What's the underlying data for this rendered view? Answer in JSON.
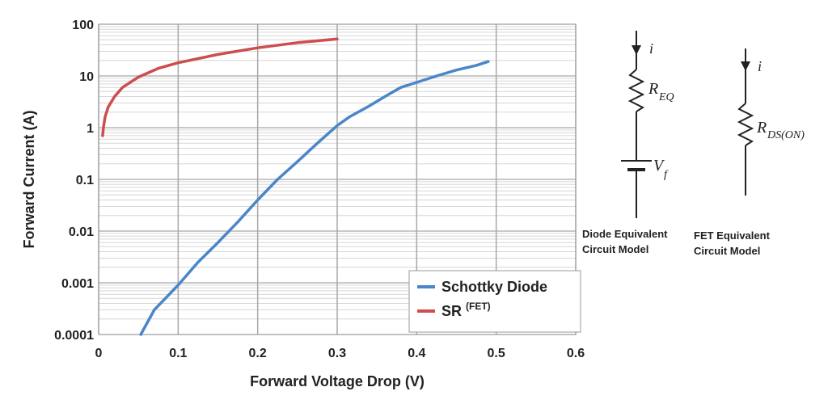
{
  "chart_data": {
    "type": "line",
    "xlabel": "Forward Voltage Drop (V)",
    "ylabel": "Forward Current (A)",
    "xlim": [
      0,
      0.6
    ],
    "ylim": [
      0.0001,
      100
    ],
    "yscale": "log",
    "grid": true,
    "legend_position": "bottom-right",
    "x_ticks": [
      "0",
      "0.1",
      "0.2",
      "0.3",
      "0.4",
      "0.5",
      "0.6"
    ],
    "y_ticks": [
      "0.0001",
      "0.001",
      "0.01",
      "0.1",
      "1",
      "10",
      "100"
    ],
    "series": [
      {
        "name": "Schottky Diode",
        "color": "#4a86c8",
        "x": [
          0.053,
          0.07,
          0.1,
          0.125,
          0.15,
          0.175,
          0.2,
          0.225,
          0.25,
          0.275,
          0.3,
          0.315,
          0.34,
          0.36,
          0.38,
          0.4,
          0.425,
          0.45,
          0.475,
          0.49
        ],
        "y": [
          0.0001,
          0.0003,
          0.0009,
          0.0025,
          0.006,
          0.015,
          0.04,
          0.1,
          0.22,
          0.5,
          1.1,
          1.6,
          2.6,
          4,
          6,
          7.5,
          10,
          13,
          16,
          19
        ]
      },
      {
        "name": "SR",
        "name_sup": "(FET)",
        "color": "#cc4e4e",
        "x": [
          0.005,
          0.006,
          0.008,
          0.012,
          0.02,
          0.03,
          0.05,
          0.075,
          0.1,
          0.15,
          0.2,
          0.25,
          0.3
        ],
        "y": [
          0.7,
          1,
          1.6,
          2.5,
          4,
          6,
          9.5,
          14,
          18,
          26,
          35,
          44,
          52
        ]
      }
    ]
  },
  "circuits": {
    "diode": {
      "current_label": "i",
      "resistor_label": "R",
      "resistor_sub": "EQ",
      "source_label": "V",
      "source_sub": "f",
      "caption_line1": "Diode Equivalent",
      "caption_line2": "Circuit Model"
    },
    "fet": {
      "current_label": "i",
      "resistor_label": "R",
      "resistor_sub": "DS(ON)",
      "caption_line1": "FET Equivalent",
      "caption_line2": "Circuit Model"
    }
  }
}
